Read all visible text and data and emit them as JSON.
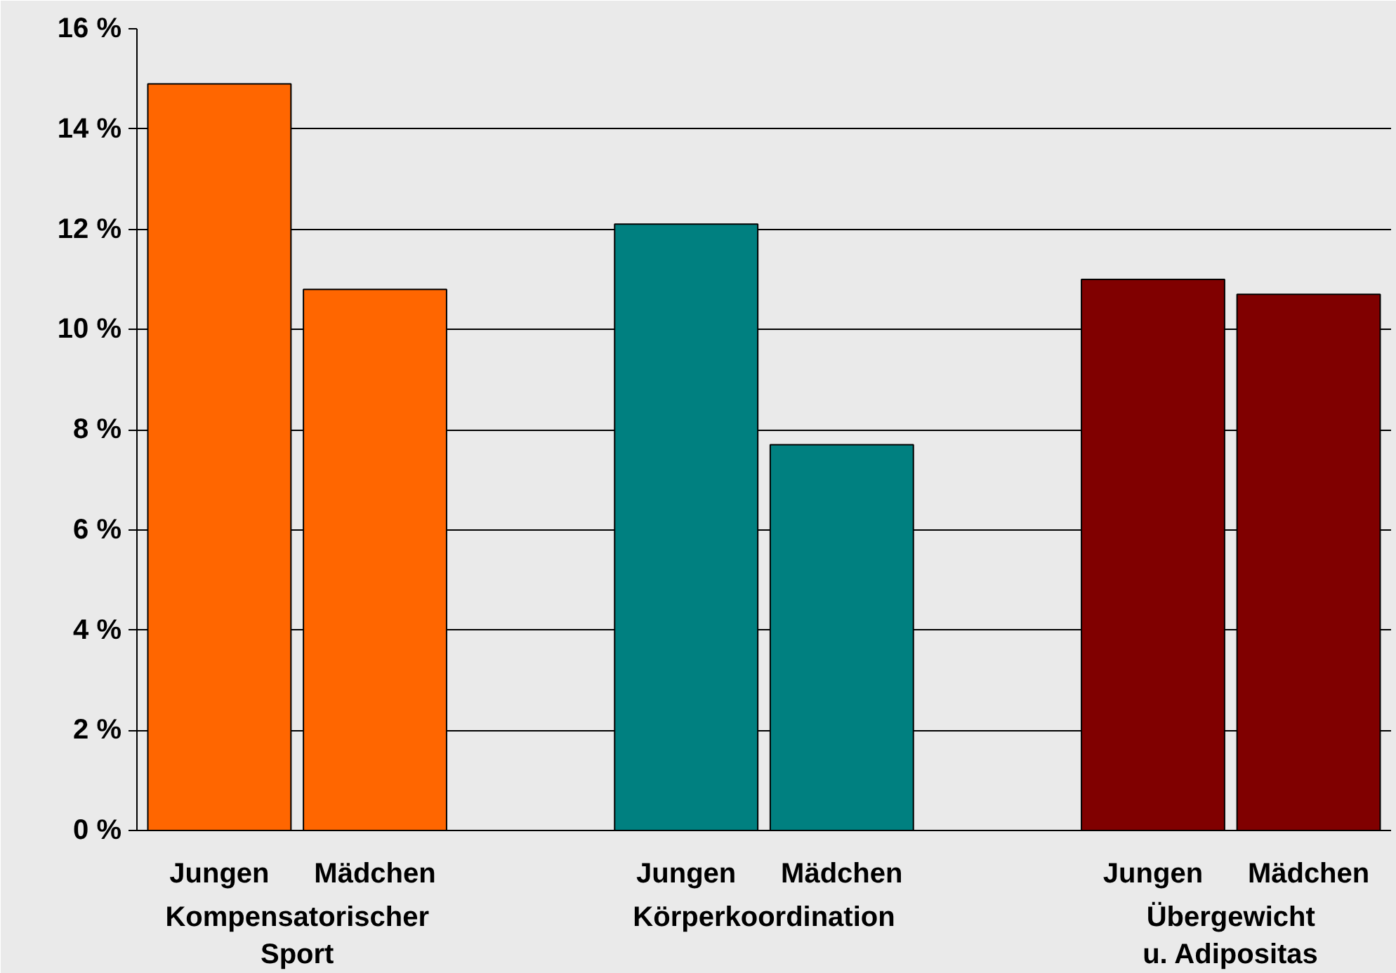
{
  "chart_data": {
    "type": "bar",
    "categories": [
      "Jungen",
      "Mädchen",
      null,
      "Jungen",
      "Mädchen",
      null,
      "Jungen",
      "Mädchen"
    ],
    "values": [
      14.9,
      10.8,
      null,
      12.1,
      7.7,
      null,
      11.0,
      10.7
    ],
    "colors": [
      "#ff6600",
      "#ff6600",
      null,
      "#008080",
      "#008080",
      null,
      "#800000",
      "#800000"
    ],
    "ylim": [
      0,
      16
    ],
    "yticks": [
      {
        "value": 0,
        "label": "0 %"
      },
      {
        "value": 2,
        "label": "2 %"
      },
      {
        "value": 4,
        "label": "4 %"
      },
      {
        "value": 6,
        "label": "6 %"
      },
      {
        "value": 8,
        "label": "8 %"
      },
      {
        "value": 10,
        "label": "10 %"
      },
      {
        "value": 12,
        "label": "12 %"
      },
      {
        "value": 14,
        "label": "14 %"
      },
      {
        "value": 16,
        "label": "16 %"
      }
    ],
    "grid": "y",
    "annotations": [
      "Kompensatorischer Sport",
      "Körperkoordination",
      "Übergewicht u. Adipositas"
    ]
  }
}
